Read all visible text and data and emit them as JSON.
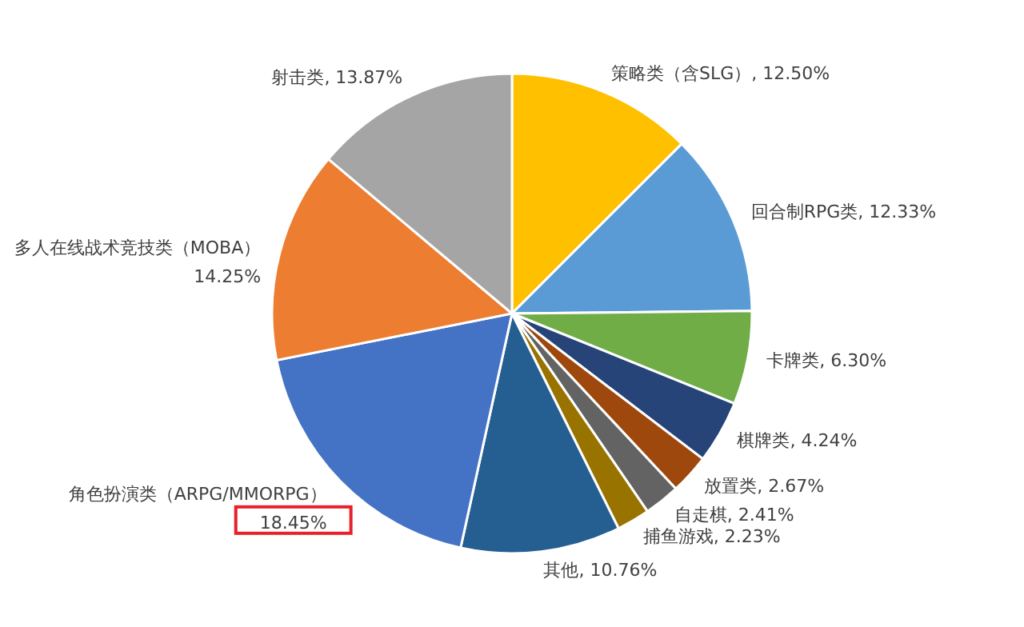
{
  "chart_data": {
    "type": "pie",
    "categories": [
      "策略类（含SLG）",
      "回合制RPG类",
      "卡牌类",
      "棋牌类",
      "放置类",
      "自走棋",
      "捕鱼游戏",
      "其他",
      "角色扮演类（ARPG/MMORPG）",
      "多人在线战术竞技类（MOBA）",
      "射击类"
    ],
    "values": [
      12.5,
      12.33,
      6.3,
      4.24,
      2.67,
      2.41,
      2.23,
      10.76,
      18.45,
      14.25,
      13.87
    ],
    "value_labels": [
      "12.50%",
      "12.33%",
      "6.30%",
      "4.24%",
      "2.67%",
      "2.41%",
      "2.23%",
      "10.76%",
      "18.45%",
      "14.25%",
      "13.87%"
    ],
    "colors": [
      "#ffc000",
      "#5b9bd5",
      "#70ad47",
      "#264478",
      "#9e480e",
      "#636363",
      "#997300",
      "#255e91",
      "#4472c4",
      "#ed7d31",
      "#a5a5a5"
    ]
  }
}
